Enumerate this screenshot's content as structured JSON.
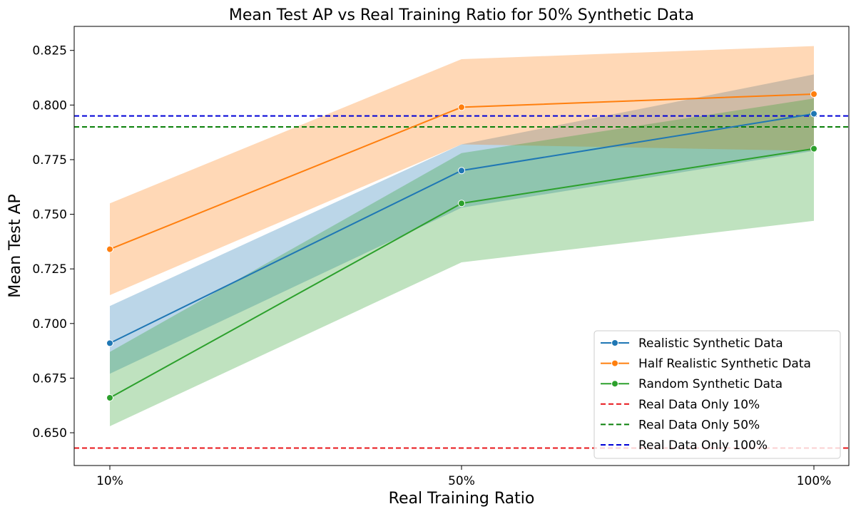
{
  "chart_data": {
    "type": "line",
    "title": "Mean Test AP vs Real Training Ratio for 50% Synthetic Data",
    "xlabel": "Real Training Ratio",
    "ylabel": "Mean Test AP",
    "categories": [
      "10%",
      "50%",
      "100%"
    ],
    "ylim": [
      0.635,
      0.836
    ],
    "yticks": [
      0.65,
      0.675,
      0.7,
      0.725,
      0.75,
      0.775,
      0.8,
      0.825
    ],
    "ytick_labels": [
      "0.650",
      "0.675",
      "0.700",
      "0.725",
      "0.750",
      "0.775",
      "0.800",
      "0.825"
    ],
    "series": [
      {
        "name": "Realistic Synthetic Data",
        "color": "#1f77b4",
        "values": [
          0.691,
          0.77,
          0.796
        ],
        "lower": [
          0.677,
          0.753,
          0.779
        ],
        "upper": [
          0.708,
          0.782,
          0.814
        ],
        "band_color": "#1f77b4"
      },
      {
        "name": "Half Realistic Synthetic Data",
        "color": "#ff7f0e",
        "values": [
          0.734,
          0.799,
          0.805
        ],
        "lower": [
          0.713,
          0.782,
          0.779
        ],
        "upper": [
          0.755,
          0.821,
          0.827
        ],
        "band_color": "#ff7f0e"
      },
      {
        "name": "Random Synthetic Data",
        "color": "#2ca02c",
        "values": [
          0.666,
          0.755,
          0.78
        ],
        "lower": [
          0.653,
          0.728,
          0.747
        ],
        "upper": [
          0.687,
          0.778,
          0.803
        ],
        "band_color": "#2ca02c"
      }
    ],
    "reference_lines": [
      {
        "name": "Real Data Only 10%",
        "value": 0.643,
        "color": "#e8161b"
      },
      {
        "name": "Real Data Only 50%",
        "value": 0.79,
        "color": "#0a800a"
      },
      {
        "name": "Real Data Only 100%",
        "value": 0.795,
        "color": "#0000d8"
      }
    ],
    "legend_position": "lower-right",
    "grid": false
  }
}
